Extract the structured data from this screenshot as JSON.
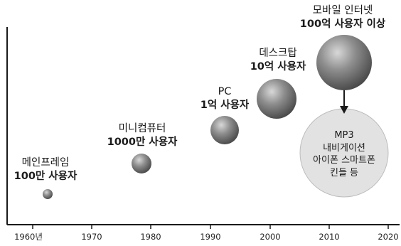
{
  "axis": {
    "ticks": [
      "1960년",
      "1970",
      "1980",
      "1990",
      "2000",
      "2010",
      "2020"
    ]
  },
  "bubbles": [
    {
      "line1": "메인프레임",
      "line2": "100만 사용자"
    },
    {
      "line1": "미니컴퓨터",
      "line2": "1000만 사용자"
    },
    {
      "line1": "PC",
      "line2": "1억 사용자"
    },
    {
      "line1": "데스크탑",
      "line2": "10억 사용자"
    },
    {
      "line1": "모바일 인터넷",
      "line2": "100억 사용자 이상"
    }
  ],
  "callout": {
    "lines": [
      "MP3",
      "내비게이션",
      "아이폰 스마트폰",
      "킨들 등"
    ]
  }
}
